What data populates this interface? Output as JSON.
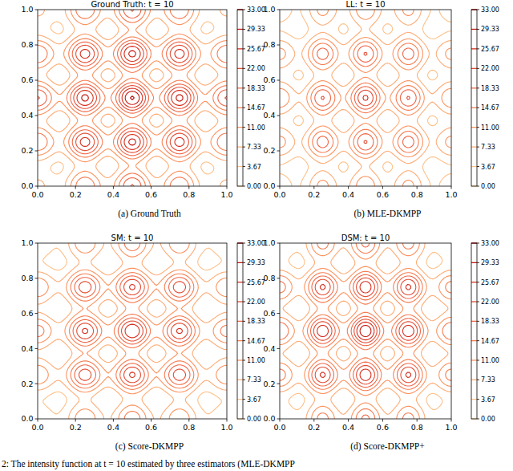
{
  "chart_data": [
    {
      "type": "contour",
      "title": "Ground Truth: t = 10",
      "caption": "(a) Ground Truth",
      "xlim": [
        0,
        1
      ],
      "ylim": [
        0,
        1
      ],
      "xticks": [
        {
          "value": 0,
          "label": "0.0"
        },
        0.2,
        0.4,
        0.6,
        0.8,
        {
          "value": 1,
          "label": "1.0"
        }
      ],
      "yticks": [
        {
          "value": 0,
          "label": "0.0"
        },
        0.2,
        0.4,
        0.6,
        0.8,
        {
          "value": 1,
          "label": "1.0"
        }
      ],
      "x": [
        0,
        0.25,
        0.5,
        0.75,
        1
      ],
      "y": [
        0,
        0.25,
        0.5,
        0.75,
        1
      ],
      "cells": [
        [
          8,
          18,
          22,
          18,
          8
        ],
        [
          18,
          27,
          30,
          27,
          18
        ],
        [
          22,
          30,
          33,
          30,
          22
        ],
        [
          18,
          27,
          30,
          27,
          18
        ],
        [
          8,
          18,
          22,
          18,
          8
        ]
      ],
      "colorbar": {
        "lim": [
          0,
          33
        ],
        "ticks": [
          {
            "value": 0,
            "label": "0.00"
          },
          {
            "value": 3.67,
            "label": "3.67"
          },
          {
            "value": 7.33,
            "label": "7.33"
          },
          {
            "value": 11,
            "label": "11.00"
          },
          {
            "value": 14.67,
            "label": "14.67"
          },
          {
            "value": 18.33,
            "label": "18.33"
          },
          {
            "value": 22,
            "label": "22.00"
          },
          {
            "value": 25.67,
            "label": "25.67"
          },
          {
            "value": 29.33,
            "label": "29.33"
          },
          {
            "value": 33,
            "label": "33.00"
          }
        ]
      }
    },
    {
      "type": "contour",
      "title": "LL: t = 10",
      "caption": "(b) MLE-DKMPP",
      "xlim": [
        0,
        1
      ],
      "ylim": [
        0,
        1
      ],
      "xticks": [
        {
          "value": 0,
          "label": "0.0"
        },
        0.2,
        0.4,
        0.6,
        0.8,
        {
          "value": 1,
          "label": "1.0"
        }
      ],
      "yticks": [
        {
          "value": 0,
          "label": "0.0"
        },
        0.2,
        0.4,
        0.6,
        0.8,
        {
          "value": 1,
          "label": "1.0"
        }
      ],
      "x": [
        0,
        0.25,
        0.5,
        0.75,
        1
      ],
      "y": [
        0,
        0.25,
        0.5,
        0.75,
        1
      ],
      "cells": [
        [
          5,
          12,
          14,
          12,
          5
        ],
        [
          12,
          20,
          22,
          20,
          12
        ],
        [
          14,
          22,
          26,
          22,
          14
        ],
        [
          12,
          20,
          22,
          20,
          12
        ],
        [
          5,
          12,
          14,
          12,
          5
        ]
      ],
      "colorbar": {
        "lim": [
          0,
          33
        ],
        "ticks": [
          {
            "value": 0,
            "label": "0.00"
          },
          {
            "value": 3.67,
            "label": "3.67"
          },
          {
            "value": 7.33,
            "label": "7.33"
          },
          {
            "value": 11,
            "label": "11.00"
          },
          {
            "value": 14.67,
            "label": "14.67"
          },
          {
            "value": 18.33,
            "label": "18.33"
          },
          {
            "value": 22,
            "label": "22.00"
          },
          {
            "value": 25.67,
            "label": "25.67"
          },
          {
            "value": 29.33,
            "label": "29.33"
          },
          {
            "value": 33,
            "label": "33.00"
          }
        ]
      }
    },
    {
      "type": "contour",
      "title": "SM: t = 10",
      "caption": "(c) Score-DKMPP",
      "xlim": [
        0,
        1
      ],
      "ylim": [
        0,
        1
      ],
      "xticks": [
        {
          "value": 0,
          "label": "0.0"
        },
        0.2,
        0.4,
        0.6,
        0.8,
        {
          "value": 1,
          "label": "1.0"
        }
      ],
      "yticks": [
        {
          "value": 0,
          "label": "0.0"
        },
        0.2,
        0.4,
        0.6,
        0.8,
        {
          "value": 1,
          "label": "1.0"
        }
      ],
      "x": [
        0,
        0.25,
        0.5,
        0.75,
        1
      ],
      "y": [
        0,
        0.25,
        0.5,
        0.75,
        1
      ],
      "cells": [
        [
          6,
          14,
          17,
          14,
          6
        ],
        [
          14,
          24,
          26,
          24,
          14
        ],
        [
          16,
          26,
          29,
          26,
          16
        ],
        [
          14,
          24,
          26,
          24,
          14
        ],
        [
          6,
          14,
          17,
          14,
          6
        ]
      ],
      "colorbar": {
        "lim": [
          0,
          33
        ],
        "ticks": [
          {
            "value": 0,
            "label": "0.00"
          },
          {
            "value": 3.67,
            "label": "3.67"
          },
          {
            "value": 7.33,
            "label": "7.33"
          },
          {
            "value": 11,
            "label": "11.00"
          },
          {
            "value": 14.67,
            "label": "14.67"
          },
          {
            "value": 18.33,
            "label": "18.33"
          },
          {
            "value": 22,
            "label": "22.00"
          },
          {
            "value": 25.67,
            "label": "25.67"
          },
          {
            "value": 29.33,
            "label": "29.33"
          },
          {
            "value": 33,
            "label": "33.00"
          }
        ]
      }
    },
    {
      "type": "contour",
      "title": "DSM: t = 10",
      "caption": "(d) Score-DKMPP+",
      "xlim": [
        0,
        1
      ],
      "ylim": [
        0,
        1
      ],
      "xticks": [
        {
          "value": 0,
          "label": "0.0"
        },
        0.2,
        0.4,
        0.6,
        0.8,
        {
          "value": 1,
          "label": "1.0"
        }
      ],
      "yticks": [
        {
          "value": 0,
          "label": "0.0"
        },
        0.2,
        0.4,
        0.6,
        0.8,
        {
          "value": 1,
          "label": "1.0"
        }
      ],
      "x": [
        0,
        0.25,
        0.5,
        0.75,
        1
      ],
      "y": [
        0,
        0.25,
        0.5,
        0.75,
        1
      ],
      "cells": [
        [
          7,
          16,
          19,
          16,
          7
        ],
        [
          16,
          26,
          28,
          26,
          16
        ],
        [
          18,
          28,
          32,
          28,
          18
        ],
        [
          16,
          26,
          28,
          26,
          16
        ],
        [
          7,
          16,
          19,
          16,
          7
        ]
      ],
      "colorbar": {
        "lim": [
          0,
          33
        ],
        "ticks": [
          {
            "value": 0,
            "label": "0.00"
          },
          {
            "value": 3.67,
            "label": "3.67"
          },
          {
            "value": 7.33,
            "label": "7.33"
          },
          {
            "value": 11,
            "label": "11.00"
          },
          {
            "value": 14.67,
            "label": "14.67"
          },
          {
            "value": 18.33,
            "label": "18.33"
          },
          {
            "value": 22,
            "label": "22.00"
          },
          {
            "value": 25.67,
            "label": "25.67"
          },
          {
            "value": 29.33,
            "label": "29.33"
          },
          {
            "value": 33,
            "label": "33.00"
          }
        ]
      }
    }
  ],
  "figure_caption": "2: The intensity function at t = 10 estimated by three estimators (MLE-DKMPP"
}
